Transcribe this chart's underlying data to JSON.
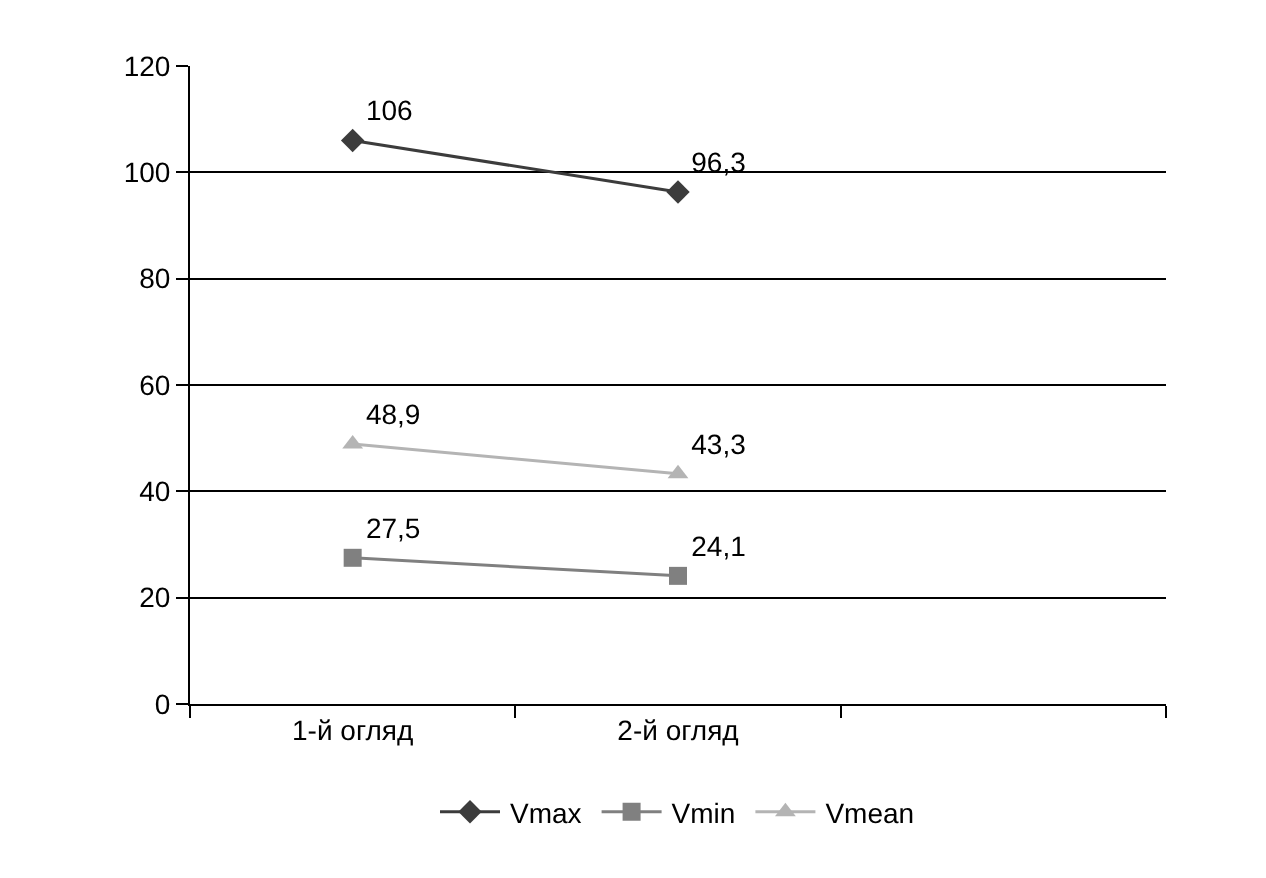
{
  "chart_data": {
    "type": "line",
    "categories": [
      "1-й огляд",
      "2-й огляд",
      null
    ],
    "series": [
      {
        "name": "Vmax",
        "color": "#3c3c3c",
        "marker": "diamond",
        "values": [
          106,
          96.3,
          null
        ],
        "value_labels": [
          "106",
          "96,3",
          null
        ]
      },
      {
        "name": "Vmin",
        "color": "#808080",
        "marker": "square",
        "values": [
          27.5,
          24.1,
          null
        ],
        "value_labels": [
          "27,5",
          "24,1",
          null
        ]
      },
      {
        "name": "Vmean",
        "color": "#b4b4b4",
        "marker": "triangle",
        "values": [
          48.9,
          43.3,
          null
        ],
        "value_labels": [
          "48,9",
          "43,3",
          null
        ]
      }
    ],
    "ylim": [
      0,
      120
    ],
    "yticks": [
      0,
      20,
      40,
      60,
      80,
      100,
      120
    ],
    "grid": "y",
    "legend": "bottom"
  }
}
